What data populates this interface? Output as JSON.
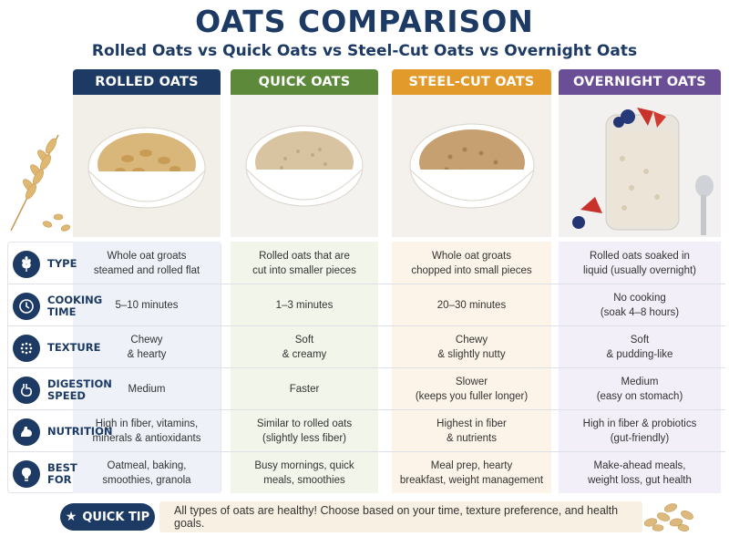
{
  "title": "OATS COMPARISON",
  "subtitle": "Rolled Oats vs Quick Oats vs Steel-Cut Oats vs Overnight Oats",
  "columns": [
    {
      "name": "ROLLED OATS",
      "color": "#1c3a63",
      "bg": "#eef2f8"
    },
    {
      "name": "QUICK OATS",
      "color": "#5d8a3a",
      "bg": "#f1f5ea"
    },
    {
      "name": "STEEL-CUT OATS",
      "color": "#e29a2b",
      "bg": "#fcf4e8"
    },
    {
      "name": "OVERNIGHT OATS",
      "color": "#6a4f96",
      "bg": "#f3eff8"
    }
  ],
  "rows": [
    {
      "icon": "wheat-icon",
      "label": "TYPE",
      "cells": [
        "Whole oat groats\nsteamed and rolled flat",
        "Rolled oats that are\ncut into smaller pieces",
        "Whole oat groats\nchopped into small pieces",
        "Rolled oats soaked in\nliquid (usually overnight)"
      ]
    },
    {
      "icon": "clock-icon",
      "label": "COOKING\nTIME",
      "cells": [
        "5–10 minutes",
        "1–3 minutes",
        "20–30 minutes",
        "No cooking\n(soak 4–8 hours)"
      ]
    },
    {
      "icon": "texture-dots-icon",
      "label": "TEXTURE",
      "cells": [
        "Chewy\n& hearty",
        "Soft\n& creamy",
        "Chewy\n& slightly nutty",
        "Soft\n& pudding-like"
      ]
    },
    {
      "icon": "stomach-icon",
      "label": "DIGESTION\nSPEED",
      "cells": [
        "Medium",
        "Faster",
        "Slower\n(keeps you fuller longer)",
        "Medium\n(easy on stomach)"
      ]
    },
    {
      "icon": "muscle-icon",
      "label": "NUTRITION",
      "cells": [
        "High in fiber, vitamins,\nminerals & antioxidants",
        "Similar to rolled oats\n(slightly less fiber)",
        "Highest in fiber\n& nutrients",
        "High in fiber & probiotics\n(gut-friendly)"
      ]
    },
    {
      "icon": "lightbulb-icon",
      "label": "BEST FOR",
      "cells": [
        "Oatmeal, baking,\nsmoothies, granola",
        "Busy mornings, quick\nmeals, smoothies",
        "Meal prep, hearty\nbreakfast, weight management",
        "Make-ahead meals,\nweight loss, gut health"
      ]
    }
  ],
  "quick_tip": {
    "label": "QUICK TIP",
    "text": "All types of oats are healthy! Choose based on your time, texture preference, and health goals."
  }
}
